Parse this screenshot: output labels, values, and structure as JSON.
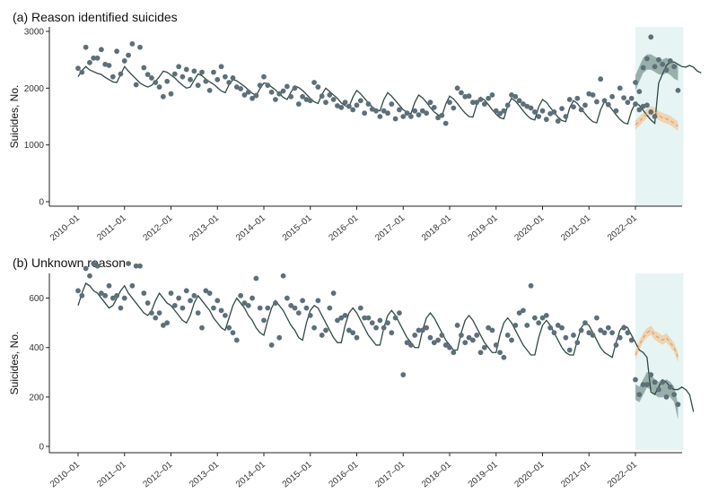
{
  "chart_data": [
    {
      "type": "line",
      "title": "(a) Reason identified suicides",
      "xlabel": "",
      "ylabel": "Suicides, No.",
      "ylim": [
        0,
        3000
      ],
      "yticks": [
        0,
        1000,
        2000,
        3000
      ],
      "xticks": [
        "2010–01",
        "2011–01",
        "2012–01",
        "2013–01",
        "2014–01",
        "2015–01",
        "2016–01",
        "2017–01",
        "2018–01",
        "2019–01",
        "2020–01",
        "2021–01",
        "2022–01"
      ],
      "highlight_period": [
        "2022-01",
        "2022-12"
      ],
      "highlight_color": "#e6f4f4",
      "grid": false,
      "colors": {
        "observed": "#5d6f79",
        "fitted": "#2f4a43",
        "counterfactual": "#e0a46b",
        "ci_fitted": "#7f9a91",
        "ci_counterfactual": "#f0c99e"
      },
      "observed_points": [
        2350,
        2280,
        2720,
        2450,
        2530,
        2530,
        2680,
        2420,
        2400,
        2200,
        2650,
        2250,
        2480,
        2580,
        2780,
        2060,
        2720,
        2360,
        2240,
        2180,
        2100,
        2020,
        1850,
        2120,
        1900,
        2250,
        2380,
        2200,
        2330,
        2150,
        2300,
        2050,
        2280,
        2120,
        1960,
        2280,
        2150,
        2380,
        2200,
        2100,
        2180,
        2020,
        1990,
        1880,
        1930,
        1820,
        1870,
        2050,
        2200,
        2050,
        1930,
        1800,
        1900,
        1950,
        2030,
        1850,
        2000,
        1720,
        1850,
        1800,
        1780,
        2100,
        2020,
        1860,
        1750,
        1880,
        1800,
        1690,
        1660,
        1750,
        1680,
        1620,
        1700,
        1780,
        1560,
        1720,
        1630,
        1600,
        1500,
        1600,
        1560,
        1720,
        1460,
        1620,
        1500,
        1560,
        1500,
        1600,
        1530,
        1600,
        1560,
        1750,
        1660,
        1480,
        1520,
        1380,
        1750,
        1650,
        2000,
        1920,
        1850,
        1860,
        1750,
        1750,
        1800,
        1720,
        1820,
        1880,
        1600,
        1550,
        1600,
        1700,
        1880,
        1850,
        1780,
        1720,
        1680,
        1650,
        1580,
        1500,
        1600,
        1450,
        1550,
        1580,
        1420,
        1640,
        1500,
        1800,
        1670,
        1820,
        1620,
        1700,
        1900,
        1880,
        1760,
        2160,
        1780,
        1710,
        1850,
        1600,
        2000,
        1830,
        1750,
        1820,
        1720,
        1620,
        1680,
        1700,
        1580,
        1500
      ],
      "observed_2022": [
        2100,
        1940,
        2360,
        2520,
        2900,
        2380,
        2500,
        2420,
        2320,
        2480,
        2380,
        1960
      ],
      "fitted": [
        2200,
        2310,
        2380,
        2320,
        2290,
        2260,
        2240,
        2190,
        2150,
        2110,
        2100,
        2240,
        2380,
        2300,
        2230,
        2160,
        2090,
        2050,
        2020,
        2050,
        2120,
        2200,
        2300,
        2280,
        2230,
        2180,
        2110,
        2050,
        2000,
        2020,
        2140,
        2250,
        2220,
        2160,
        2110,
        2070,
        2010,
        1950,
        1920,
        2060,
        2150,
        2130,
        2080,
        2030,
        1970,
        1910,
        1870,
        1990,
        2090,
        2080,
        2020,
        1970,
        1900,
        1840,
        1800,
        1930,
        2040,
        2010,
        1960,
        1890,
        1820,
        1760,
        1730,
        1890,
        2000,
        1940,
        1880,
        1820,
        1740,
        1690,
        1670,
        1840,
        1960,
        1900,
        1820,
        1740,
        1670,
        1620,
        1600,
        1800,
        1920,
        1860,
        1780,
        1700,
        1620,
        1570,
        1550,
        1750,
        1880,
        1830,
        1750,
        1660,
        1580,
        1530,
        1510,
        1720,
        1860,
        1810,
        1730,
        1640,
        1560,
        1500,
        1490,
        1710,
        1840,
        1790,
        1710,
        1620,
        1540,
        1480,
        1460,
        1690,
        1820,
        1770,
        1690,
        1600,
        1520,
        1460,
        1440,
        1670,
        1800,
        1750,
        1660,
        1570,
        1490,
        1430,
        1410,
        1650,
        1780,
        1730,
        1640,
        1550,
        1470,
        1410,
        1390,
        1620,
        1760,
        1710,
        1620,
        1530,
        1450,
        1390,
        1370,
        1600,
        1740,
        1700,
        1610,
        1520,
        1440,
        1380
      ],
      "fitted_2022": [
        2090,
        2250,
        2400,
        2460,
        2460,
        2420,
        2380,
        2370,
        2400,
        2370,
        2300,
        2270
      ],
      "counterfactual_2022": [
        1350,
        1420,
        1480,
        1560,
        1600,
        1580,
        1520,
        1480,
        1460,
        1430,
        1380,
        1330
      ]
    },
    {
      "type": "line",
      "title": "(b) Unknown reason",
      "xlabel": "",
      "ylabel": "Suicides, No.",
      "ylim": [
        0,
        700
      ],
      "yticks": [
        0,
        200,
        400,
        600
      ],
      "xticks": [
        "2010–01",
        "2011–01",
        "2012–01",
        "2013–01",
        "2014–01",
        "2015–01",
        "2016–01",
        "2017–01",
        "2018–01",
        "2019–01",
        "2020–01",
        "2021–01",
        "2022–01"
      ],
      "highlight_period": [
        "2022-01",
        "2022-12"
      ],
      "highlight_color": "#e6f4f4",
      "grid": false,
      "colors": {
        "observed": "#5d6f79",
        "fitted": "#2f4a43",
        "counterfactual": "#e0a46b",
        "ci_fitted": "#7f9a91",
        "ci_counterfactual": "#f0c99e"
      },
      "observed_points": [
        630,
        610,
        720,
        690,
        740,
        730,
        620,
        610,
        650,
        600,
        610,
        560,
        600,
        740,
        650,
        730,
        730,
        620,
        580,
        540,
        520,
        540,
        490,
        500,
        620,
        570,
        600,
        560,
        630,
        590,
        610,
        540,
        480,
        630,
        620,
        560,
        590,
        550,
        530,
        480,
        460,
        430,
        610,
        580,
        570,
        600,
        680,
        560,
        510,
        560,
        410,
        580,
        440,
        690,
        600,
        570,
        560,
        540,
        590,
        560,
        530,
        480,
        590,
        450,
        470,
        560,
        620,
        510,
        520,
        530,
        470,
        460,
        440,
        560,
        520,
        520,
        500,
        480,
        510,
        480,
        500,
        460,
        520,
        540,
        290,
        420,
        410,
        450,
        470,
        470,
        480,
        440,
        420,
        430,
        450,
        410,
        400,
        380,
        490,
        450,
        420,
        440,
        430,
        450,
        380,
        400,
        480,
        470,
        410,
        380,
        360,
        450,
        430,
        490,
        540,
        550,
        490,
        650,
        520,
        500,
        520,
        530,
        480,
        460,
        490,
        480,
        440,
        390,
        450,
        420,
        470,
        500,
        460,
        450,
        520,
        470,
        460,
        480,
        460,
        410,
        440,
        480,
        460,
        430
      ],
      "observed_2022": [
        270,
        210,
        250,
        250,
        290,
        260,
        230,
        260,
        200,
        240,
        210,
        170
      ],
      "fitted": [
        570,
        620,
        660,
        650,
        630,
        620,
        600,
        580,
        560,
        570,
        600,
        630,
        650,
        620,
        600,
        580,
        560,
        540,
        530,
        550,
        590,
        620,
        600,
        580,
        570,
        550,
        530,
        510,
        500,
        530,
        580,
        610,
        590,
        570,
        550,
        520,
        500,
        480,
        470,
        520,
        570,
        600,
        580,
        560,
        530,
        510,
        480,
        460,
        450,
        510,
        560,
        590,
        570,
        550,
        520,
        490,
        470,
        440,
        430,
        500,
        550,
        570,
        560,
        530,
        500,
        470,
        440,
        420,
        420,
        490,
        540,
        560,
        540,
        510,
        480,
        450,
        430,
        410,
        410,
        480,
        530,
        550,
        530,
        500,
        470,
        440,
        420,
        400,
        400,
        470,
        520,
        540,
        520,
        490,
        460,
        430,
        410,
        390,
        390,
        460,
        510,
        530,
        510,
        480,
        450,
        420,
        400,
        380,
        380,
        450,
        500,
        520,
        500,
        470,
        440,
        410,
        390,
        370,
        370,
        440,
        490,
        510,
        490,
        460,
        430,
        400,
        380,
        370,
        370,
        430,
        480,
        500,
        490,
        460,
        430,
        400,
        380,
        370,
        360,
        420,
        470,
        490,
        480,
        450,
        420,
        390,
        380,
        360
      ],
      "fitted_2022": [
        220,
        210,
        240,
        270,
        260,
        240,
        230,
        230,
        240,
        230,
        210,
        140
      ],
      "counterfactual_2022": [
        370,
        410,
        440,
        460,
        470,
        450,
        440,
        430,
        440,
        420,
        400,
        360
      ]
    }
  ]
}
